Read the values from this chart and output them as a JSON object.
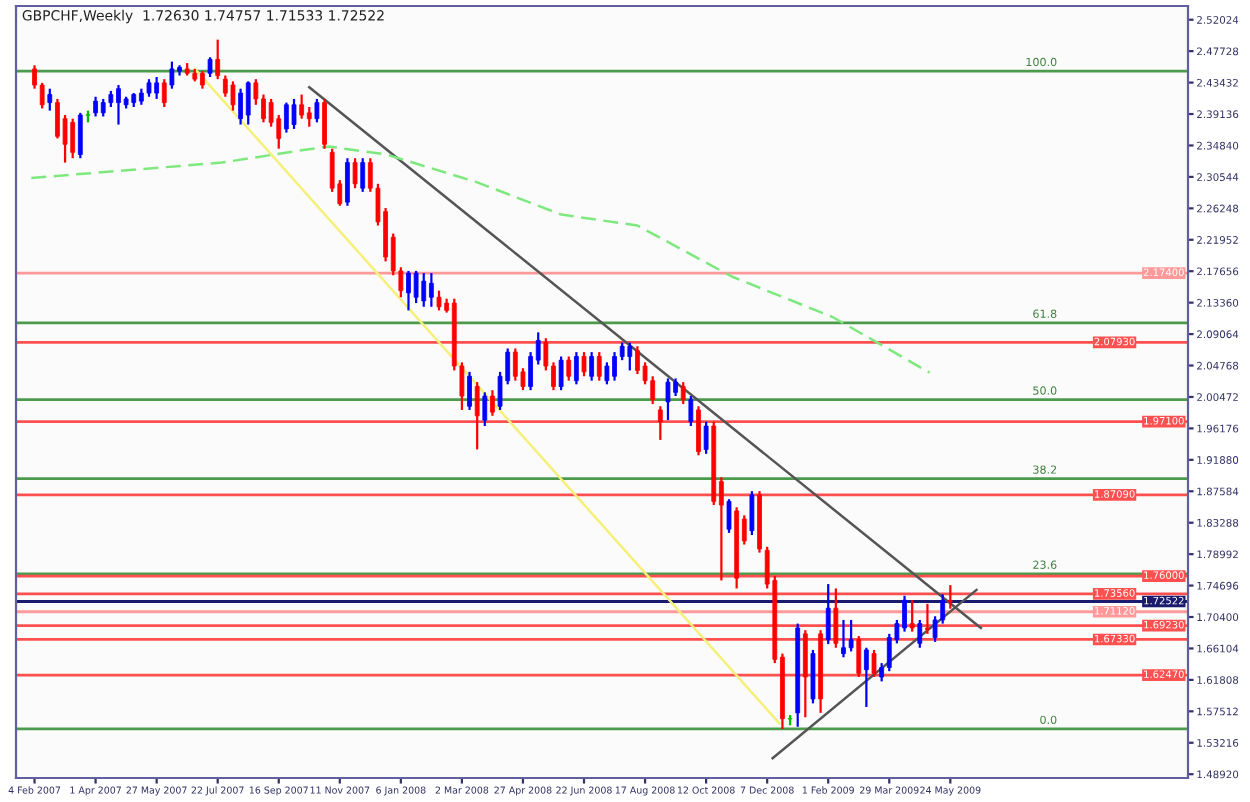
{
  "chart_data": {
    "type": "candlestick",
    "title": "GBPCHF,Weekly",
    "subtitle": "1.72630 1.74757 1.71533 1.72522",
    "x": [
      "2007-02-04",
      "2007-02-11",
      "2007-02-18",
      "2007-02-25",
      "2007-03-04",
      "2007-03-11",
      "2007-03-18",
      "2007-03-25",
      "2007-04-01",
      "2007-04-08",
      "2007-04-15",
      "2007-04-22",
      "2007-04-29",
      "2007-05-06",
      "2007-05-13",
      "2007-05-20",
      "2007-05-27",
      "2007-06-03",
      "2007-06-10",
      "2007-06-17",
      "2007-06-24",
      "2007-07-01",
      "2007-07-08",
      "2007-07-15",
      "2007-07-22",
      "2007-07-29",
      "2007-08-05",
      "2007-08-12",
      "2007-08-19",
      "2007-08-26",
      "2007-09-02",
      "2007-09-09",
      "2007-09-16",
      "2007-09-23",
      "2007-09-30",
      "2007-10-07",
      "2007-10-14",
      "2007-10-21",
      "2007-10-28",
      "2007-11-04",
      "2007-11-11",
      "2007-11-18",
      "2007-11-25",
      "2007-12-02",
      "2007-12-09",
      "2007-12-16",
      "2007-12-23",
      "2007-12-30",
      "2008-01-06",
      "2008-01-13",
      "2008-01-20",
      "2008-01-27",
      "2008-02-03",
      "2008-02-10",
      "2008-02-17",
      "2008-02-24",
      "2008-03-02",
      "2008-03-09",
      "2008-03-16",
      "2008-03-23",
      "2008-03-30",
      "2008-04-06",
      "2008-04-13",
      "2008-04-20",
      "2008-04-27",
      "2008-05-04",
      "2008-05-11",
      "2008-05-18",
      "2008-05-25",
      "2008-06-01",
      "2008-06-08",
      "2008-06-15",
      "2008-06-22",
      "2008-06-29",
      "2008-07-06",
      "2008-07-13",
      "2008-07-20",
      "2008-07-27",
      "2008-08-03",
      "2008-08-10",
      "2008-08-17",
      "2008-08-24",
      "2008-08-31",
      "2008-09-07",
      "2008-09-14",
      "2008-09-21",
      "2008-09-28",
      "2008-10-05",
      "2008-10-12",
      "2008-10-19",
      "2008-10-26",
      "2008-11-02",
      "2008-11-09",
      "2008-11-16",
      "2008-11-23",
      "2008-11-30",
      "2008-12-07",
      "2008-12-14",
      "2008-12-21",
      "2008-12-28",
      "2009-01-04",
      "2009-01-11",
      "2009-01-18",
      "2009-01-25",
      "2009-02-01",
      "2009-02-08",
      "2009-02-15",
      "2009-02-22",
      "2009-03-01",
      "2009-03-08",
      "2009-03-15",
      "2009-03-22",
      "2009-03-29",
      "2009-04-05",
      "2009-04-12",
      "2009-04-19",
      "2009-04-26",
      "2009-05-03",
      "2009-05-10",
      "2009-05-17",
      "2009-05-24"
    ],
    "ohlc": [
      [
        2.453,
        2.458,
        2.426,
        2.431
      ],
      [
        2.431,
        2.434,
        2.399,
        2.404
      ],
      [
        2.407,
        2.426,
        2.396,
        2.418
      ],
      [
        2.407,
        2.412,
        2.358,
        2.361
      ],
      [
        2.385,
        2.39,
        2.325,
        2.35
      ],
      [
        2.38,
        2.385,
        2.331,
        2.339
      ],
      [
        2.336,
        2.393,
        2.331,
        2.39
      ],
      [
        2.39,
        2.396,
        2.38,
        2.39
      ],
      [
        2.393,
        2.415,
        2.388,
        2.409
      ],
      [
        2.393,
        2.412,
        2.388,
        2.407
      ],
      [
        2.407,
        2.423,
        2.401,
        2.418
      ],
      [
        2.407,
        2.431,
        2.377,
        2.426
      ],
      [
        2.404,
        2.415,
        2.399,
        2.412
      ],
      [
        2.407,
        2.42,
        2.401,
        2.418
      ],
      [
        2.409,
        2.426,
        2.404,
        2.42
      ],
      [
        2.42,
        2.439,
        2.415,
        2.434
      ],
      [
        2.42,
        2.442,
        2.412,
        2.434
      ],
      [
        2.434,
        2.439,
        2.401,
        2.407
      ],
      [
        2.431,
        2.463,
        2.426,
        2.453
      ],
      [
        2.45,
        2.458,
        2.444,
        2.455
      ],
      [
        2.453,
        2.461,
        2.444,
        2.447
      ],
      [
        2.447,
        2.453,
        2.436,
        2.439
      ],
      [
        2.447,
        2.45,
        2.426,
        2.431
      ],
      [
        2.447,
        2.469,
        2.442,
        2.466
      ],
      [
        2.466,
        2.493,
        2.439,
        2.444
      ],
      [
        2.439,
        2.444,
        2.415,
        2.42
      ],
      [
        2.431,
        2.436,
        2.396,
        2.404
      ],
      [
        2.385,
        2.426,
        2.377,
        2.42
      ],
      [
        2.39,
        2.436,
        2.377,
        2.434
      ],
      [
        2.434,
        2.439,
        2.404,
        2.412
      ],
      [
        2.412,
        2.418,
        2.38,
        2.385
      ],
      [
        2.407,
        2.412,
        2.374,
        2.38
      ],
      [
        2.385,
        2.39,
        2.344,
        2.358
      ],
      [
        2.371,
        2.407,
        2.366,
        2.404
      ],
      [
        2.377,
        2.412,
        2.371,
        2.404
      ],
      [
        2.404,
        2.418,
        2.385,
        2.39
      ],
      [
        2.393,
        2.401,
        2.374,
        2.385
      ],
      [
        2.385,
        2.412,
        2.38,
        2.407
      ],
      [
        2.407,
        2.412,
        2.344,
        2.35
      ],
      [
        2.339,
        2.344,
        2.285,
        2.29
      ],
      [
        2.296,
        2.301,
        2.266,
        2.269
      ],
      [
        2.271,
        2.331,
        2.266,
        2.325
      ],
      [
        2.325,
        2.331,
        2.29,
        2.296
      ],
      [
        2.29,
        2.331,
        2.285,
        2.325
      ],
      [
        2.325,
        2.331,
        2.285,
        2.29
      ],
      [
        2.29,
        2.296,
        2.239,
        2.244
      ],
      [
        2.258,
        2.263,
        2.19,
        2.196
      ],
      [
        2.223,
        2.228,
        2.171,
        2.177
      ],
      [
        2.177,
        2.182,
        2.141,
        2.15
      ],
      [
        2.147,
        2.177,
        2.123,
        2.174
      ],
      [
        2.141,
        2.177,
        2.133,
        2.174
      ],
      [
        2.136,
        2.174,
        2.128,
        2.163
      ],
      [
        2.141,
        2.174,
        2.128,
        2.16
      ],
      [
        2.141,
        2.15,
        2.123,
        2.128
      ],
      [
        2.133,
        2.139,
        2.12,
        2.123
      ],
      [
        2.133,
        2.139,
        2.041,
        2.047
      ],
      [
        2.047,
        2.052,
        1.987,
        2.006
      ],
      [
        1.992,
        2.039,
        1.987,
        2.033
      ],
      [
        2.019,
        2.025,
        1.933,
        1.979
      ],
      [
        1.973,
        2.011,
        1.965,
        2.006
      ],
      [
        2.006,
        2.014,
        1.979,
        1.984
      ],
      [
        1.992,
        2.039,
        1.987,
        2.033
      ],
      [
        2.027,
        2.071,
        2.022,
        2.066
      ],
      [
        2.066,
        2.071,
        2.027,
        2.033
      ],
      [
        2.039,
        2.044,
        2.014,
        2.019
      ],
      [
        2.019,
        2.066,
        2.014,
        2.06
      ],
      [
        2.055,
        2.093,
        2.049,
        2.082
      ],
      [
        2.079,
        2.085,
        2.041,
        2.047
      ],
      [
        2.047,
        2.052,
        2.014,
        2.019
      ],
      [
        2.019,
        2.06,
        2.014,
        2.055
      ],
      [
        2.055,
        2.06,
        2.027,
        2.033
      ],
      [
        2.027,
        2.066,
        2.022,
        2.06
      ],
      [
        2.06,
        2.066,
        2.033,
        2.039
      ],
      [
        2.033,
        2.066,
        2.027,
        2.06
      ],
      [
        2.06,
        2.066,
        2.027,
        2.033
      ],
      [
        2.027,
        2.052,
        2.022,
        2.047
      ],
      [
        2.033,
        2.066,
        2.027,
        2.06
      ],
      [
        2.06,
        2.079,
        2.055,
        2.074
      ],
      [
        2.06,
        2.079,
        2.041,
        2.074
      ],
      [
        2.068,
        2.074,
        2.036,
        2.041
      ],
      [
        2.047,
        2.052,
        2.022,
        2.027
      ],
      [
        2.027,
        2.033,
        1.995,
        2.001
      ],
      [
        1.987,
        1.992,
        1.946,
        1.971
      ],
      [
        1.998,
        2.03,
        1.973,
        2.025
      ],
      [
        2.011,
        2.03,
        2.006,
        2.025
      ],
      [
        2.019,
        2.025,
        1.995,
        2.001
      ],
      [
        1.971,
        2.006,
        1.965,
        2.001
      ],
      [
        1.987,
        1.992,
        1.925,
        1.93
      ],
      [
        1.933,
        1.971,
        1.927,
        1.965
      ],
      [
        1.965,
        1.971,
        1.857,
        1.862
      ],
      [
        1.889,
        1.895,
        1.754,
        1.857
      ],
      [
        1.824,
        1.865,
        1.819,
        1.862
      ],
      [
        1.849,
        1.854,
        1.743,
        1.757
      ],
      [
        1.838,
        1.843,
        1.803,
        1.808
      ],
      [
        1.822,
        1.876,
        1.816,
        1.871
      ],
      [
        1.871,
        1.876,
        1.792,
        1.797
      ],
      [
        1.795,
        1.8,
        1.743,
        1.749
      ],
      [
        1.754,
        1.76,
        1.641,
        1.646
      ],
      [
        1.649,
        1.654,
        1.551,
        1.565
      ],
      [
        1.565,
        1.57,
        1.556,
        1.565
      ],
      [
        1.573,
        1.695,
        1.554,
        1.689
      ],
      [
        1.681,
        1.686,
        1.567,
        1.622
      ],
      [
        1.592,
        1.659,
        1.586,
        1.654
      ],
      [
        1.681,
        1.686,
        1.573,
        1.592
      ],
      [
        1.673,
        1.749,
        1.667,
        1.716
      ],
      [
        1.716,
        1.743,
        1.662,
        1.668
      ],
      [
        1.654,
        1.7,
        1.649,
        1.662
      ],
      [
        1.662,
        1.7,
        1.657,
        1.673
      ],
      [
        1.673,
        1.678,
        1.622,
        1.627
      ],
      [
        1.632,
        1.662,
        1.581,
        1.659
      ],
      [
        1.654,
        1.659,
        1.622,
        1.627
      ],
      [
        1.622,
        1.641,
        1.616,
        1.635
      ],
      [
        1.635,
        1.681,
        1.63,
        1.676
      ],
      [
        1.673,
        1.7,
        1.668,
        1.695
      ],
      [
        1.689,
        1.733,
        1.684,
        1.727
      ],
      [
        1.695,
        1.727,
        1.684,
        1.689
      ],
      [
        1.668,
        1.7,
        1.662,
        1.695
      ],
      [
        1.689,
        1.722,
        1.681,
        1.687
      ],
      [
        1.676,
        1.705,
        1.67,
        1.7
      ],
      [
        1.7,
        1.735,
        1.695,
        1.727
      ],
      [
        1.7263,
        1.74757,
        1.71533,
        1.72522
      ]
    ],
    "colors": [
      "#ff0000",
      "#ff0000",
      "#0000ff",
      "#ff0000",
      "#ff0000",
      "#ff0000",
      "#0000ff",
      "#00c000",
      "#0000ff",
      "#0000ff",
      "#0000ff",
      "#0000ff",
      "#0000ff",
      "#0000ff",
      "#0000ff",
      "#0000ff",
      "#0000ff",
      "#ff0000",
      "#0000ff",
      "#0000ff",
      "#ff0000",
      "#ff0000",
      "#ff0000",
      "#0000ff",
      "#ff0000",
      "#ff0000",
      "#ff0000",
      "#0000ff",
      "#0000ff",
      "#ff0000",
      "#ff0000",
      "#ff0000",
      "#ff0000",
      "#0000ff",
      "#0000ff",
      "#ff0000",
      "#ff0000",
      "#0000ff",
      "#ff0000",
      "#ff0000",
      "#ff0000",
      "#0000ff",
      "#ff0000",
      "#0000ff",
      "#ff0000",
      "#ff0000",
      "#ff0000",
      "#ff0000",
      "#ff0000",
      "#0000ff",
      "#0000ff",
      "#0000ff",
      "#0000ff",
      "#ff0000",
      "#ff0000",
      "#ff0000",
      "#ff0000",
      "#0000ff",
      "#ff0000",
      "#0000ff",
      "#ff0000",
      "#0000ff",
      "#0000ff",
      "#ff0000",
      "#ff0000",
      "#0000ff",
      "#0000ff",
      "#ff0000",
      "#ff0000",
      "#0000ff",
      "#ff0000",
      "#0000ff",
      "#ff0000",
      "#0000ff",
      "#ff0000",
      "#0000ff",
      "#0000ff",
      "#0000ff",
      "#0000ff",
      "#ff0000",
      "#ff0000",
      "#ff0000",
      "#ff0000",
      "#0000ff",
      "#0000ff",
      "#ff0000",
      "#0000ff",
      "#ff0000",
      "#0000ff",
      "#ff0000",
      "#ff0000",
      "#0000ff",
      "#ff0000",
      "#ff0000",
      "#0000ff",
      "#ff0000",
      "#ff0000",
      "#ff0000",
      "#ff0000",
      "#00c000",
      "#0000ff",
      "#ff0000",
      "#0000ff",
      "#ff0000",
      "#0000ff",
      "#ff0000",
      "#0000ff",
      "#0000ff",
      "#ff0000",
      "#0000ff",
      "#ff0000",
      "#0000ff",
      "#0000ff",
      "#0000ff",
      "#0000ff",
      "#ff0000",
      "#0000ff",
      "#ff0000",
      "#0000ff",
      "#0000ff",
      "#ff0000"
    ],
    "series": [
      {
        "type": "line",
        "color": "#555555",
        "line_style": "solid",
        "x": [
          "2007-10-14",
          "2009-06-21"
        ],
        "values": [
          2.428,
          1.689
        ]
      },
      {
        "type": "line",
        "color": "#555555",
        "line_style": "solid",
        "x": [
          "2008-12-12",
          "2009-06-17"
        ],
        "values": [
          1.511,
          1.741
        ]
      },
      {
        "type": "line",
        "color": "#f5f07a",
        "line_style": "solid",
        "x": [
          "2007-07-01",
          "2008-12-18"
        ],
        "values": [
          2.453,
          1.559
        ]
      },
      {
        "type": "line",
        "color": "#7ee87e",
        "line_style": "dashed",
        "x": [
          "2007-02-01",
          "2007-07-26",
          "2007-10-03",
          "2007-11-01",
          "2007-12-24",
          "2008-03-16",
          "2008-06-01",
          "2008-08-10",
          "2008-11-05",
          "2009-02-05",
          "2009-05-05"
        ],
        "values": [
          2.304,
          2.325,
          2.341,
          2.347,
          2.336,
          2.298,
          2.254,
          2.239,
          2.169,
          2.114,
          2.038
        ]
      }
    ],
    "ref_lines": [
      {
        "axis": "y",
        "value": 2.45,
        "color": "#4c9a4c"
      },
      {
        "axis": "y",
        "value": 2.106,
        "color": "#4c9a4c"
      },
      {
        "axis": "y",
        "value": 2.001,
        "color": "#4c9a4c"
      },
      {
        "axis": "y",
        "value": 1.893,
        "color": "#4c9a4c"
      },
      {
        "axis": "y",
        "value": 1.763,
        "color": "#4c9a4c"
      },
      {
        "axis": "y",
        "value": 1.551,
        "color": "#4c9a4c"
      },
      {
        "axis": "y",
        "value": 2.174,
        "color": "#ff9a9a",
        "label": "2.17400"
      },
      {
        "axis": "y",
        "value": 2.0793,
        "color": "#ff5050",
        "label": "2.07930"
      },
      {
        "axis": "y",
        "value": 1.971,
        "color": "#ff5050",
        "label": "1.97100"
      },
      {
        "axis": "y",
        "value": 1.8709,
        "color": "#ff5050",
        "label": "1.87090"
      },
      {
        "axis": "y",
        "value": 1.76,
        "color": "#ff5050",
        "label": "1.76000"
      },
      {
        "axis": "y",
        "value": 1.7356,
        "color": "#ff5050",
        "label": "1.73560"
      },
      {
        "axis": "y",
        "value": 1.72522,
        "color": "#1a1a6e",
        "label": "1.72522"
      },
      {
        "axis": "y",
        "value": 1.7112,
        "color": "#ff9a9a",
        "label": "1.71120"
      },
      {
        "axis": "y",
        "value": 1.6923,
        "color": "#ff5050",
        "label": "1.69230"
      },
      {
        "axis": "y",
        "value": 1.6733,
        "color": "#ff5050",
        "label": "1.67330"
      },
      {
        "axis": "y",
        "value": 1.6247,
        "color": "#ff5050",
        "label": "1.62470"
      }
    ],
    "annotations": [
      {
        "text": "100.0",
        "x": "2009-08-30",
        "y": 2.45
      },
      {
        "text": "61.8",
        "x": "2009-08-30",
        "y": 2.106
      },
      {
        "text": "50.0",
        "x": "2009-08-30",
        "y": 2.001
      },
      {
        "text": "38.2",
        "x": "2009-08-30",
        "y": 1.893
      },
      {
        "text": "23.6",
        "x": "2009-08-30",
        "y": 1.763
      },
      {
        "text": "0.0",
        "x": "2009-08-30",
        "y": 1.551
      }
    ],
    "xlim": [
      "2007-01-18",
      "2009-12-28"
    ],
    "xticks": [
      {
        "value": "2007-02-04",
        "label": "4 Feb 2007"
      },
      {
        "value": "2007-04-01",
        "label": "1 Apr 2007"
      },
      {
        "value": "2007-05-27",
        "label": "27 May 2007"
      },
      {
        "value": "2007-07-22",
        "label": "22 Jul 2007"
      },
      {
        "value": "2007-09-16",
        "label": "16 Sep 2007"
      },
      {
        "value": "2007-11-11",
        "label": "11 Nov 2007"
      },
      {
        "value": "2008-01-06",
        "label": "6 Jan 2008"
      },
      {
        "value": "2008-03-02",
        "label": "2 Mar 2008"
      },
      {
        "value": "2008-04-27",
        "label": "27 Apr 2008"
      },
      {
        "value": "2008-06-22",
        "label": "22 Jun 2008"
      },
      {
        "value": "2008-08-17",
        "label": "17 Aug 2008"
      },
      {
        "value": "2008-10-12",
        "label": "12 Oct 2008"
      },
      {
        "value": "2008-12-07",
        "label": "7 Dec 2008"
      },
      {
        "value": "2009-02-01",
        "label": "1 Feb 2009"
      },
      {
        "value": "2009-03-29",
        "label": "29 Mar 2009"
      },
      {
        "value": "2009-05-24",
        "label": "24 May 2009"
      }
    ],
    "ylim": [
      1.484,
      2.539
    ],
    "yticks": [
      {
        "value": 1.4892,
        "label": "1.48920"
      },
      {
        "value": 1.53216,
        "label": "1.53216"
      },
      {
        "value": 1.57512,
        "label": "1.57512"
      },
      {
        "value": 1.61808,
        "label": "1.61808"
      },
      {
        "value": 1.66104,
        "label": "1.66104"
      },
      {
        "value": 1.704,
        "label": "1.70400"
      },
      {
        "value": 1.74696,
        "label": "1.74696"
      },
      {
        "value": 1.78992,
        "label": "1.78992"
      },
      {
        "value": 1.83288,
        "label": "1.83288"
      },
      {
        "value": 1.87584,
        "label": "1.87584"
      },
      {
        "value": 1.9188,
        "label": "1.91880"
      },
      {
        "value": 1.96176,
        "label": "1.96176"
      },
      {
        "value": 2.00472,
        "label": "2.00472"
      },
      {
        "value": 2.04768,
        "label": "2.04768"
      },
      {
        "value": 2.09064,
        "label": "2.09064"
      },
      {
        "value": 2.1336,
        "label": "2.13360"
      },
      {
        "value": 2.17656,
        "label": "2.17656"
      },
      {
        "value": 2.21952,
        "label": "2.21952"
      },
      {
        "value": 2.26248,
        "label": "2.26248"
      },
      {
        "value": 2.30544,
        "label": "2.30544"
      },
      {
        "value": 2.3484,
        "label": "2.34840"
      },
      {
        "value": 2.39136,
        "label": "2.39136"
      },
      {
        "value": 2.43432,
        "label": "2.43432"
      },
      {
        "value": 2.47728,
        "label": "2.47728"
      },
      {
        "value": 2.52024,
        "label": "2.52024"
      }
    ]
  }
}
